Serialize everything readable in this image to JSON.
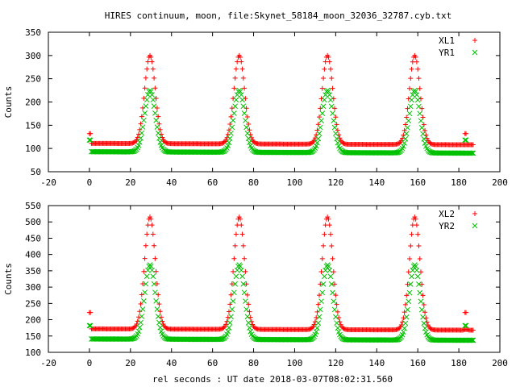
{
  "title": "HIRES continuum, moon, file:Skynet_58184_moon_32036_32787.cyb.txt",
  "xlabel": "rel seconds : UT date 2018-03-07T08:02:31.560",
  "chart_data": [
    {
      "type": "scatter",
      "ylabel": "Counts",
      "xlim": [
        -20,
        200
      ],
      "ylim": [
        50,
        350
      ],
      "xticks": [
        -20,
        0,
        20,
        40,
        60,
        80,
        100,
        120,
        140,
        160,
        180,
        200
      ],
      "yticks": [
        50,
        100,
        150,
        200,
        250,
        300,
        350
      ],
      "grid": false,
      "legend": "top-right",
      "peaks": [
        29.5,
        73,
        116,
        158.5
      ],
      "peak_width": 2.6,
      "x_range": [
        1,
        187
      ],
      "series": [
        {
          "name": "XL1",
          "marker": "+",
          "color": "#ff0000",
          "baseline_start": 111,
          "baseline_end": 108,
          "peak": 300,
          "cal_at_0": 132,
          "cal_at_183": 132,
          "end_value": 108
        },
        {
          "name": "YR1",
          "marker": "x",
          "color": "#00c000",
          "baseline_start": 93,
          "baseline_end": 90,
          "peak": 225,
          "cal_at_0": 118,
          "cal_at_183": 118,
          "end_value": 90
        }
      ]
    },
    {
      "type": "scatter",
      "ylabel": "Counts",
      "xlim": [
        -20,
        200
      ],
      "ylim": [
        100,
        550
      ],
      "xticks": [
        -20,
        0,
        20,
        40,
        60,
        80,
        100,
        120,
        140,
        160,
        180,
        200
      ],
      "yticks": [
        100,
        150,
        200,
        250,
        300,
        350,
        400,
        450,
        500,
        550
      ],
      "grid": false,
      "legend": "top-right",
      "peaks": [
        29.5,
        73,
        116,
        158.5
      ],
      "peak_width": 2.6,
      "x_range": [
        1,
        187
      ],
      "series": [
        {
          "name": "XL2",
          "marker": "+",
          "color": "#ff0000",
          "baseline_start": 172,
          "baseline_end": 168,
          "peak": 515,
          "cal_at_0": 222,
          "cal_at_183": 222,
          "end_value": 170
        },
        {
          "name": "YR2",
          "marker": "x",
          "color": "#00c000",
          "baseline_start": 141,
          "baseline_end": 137,
          "peak": 368,
          "cal_at_0": 182,
          "cal_at_183": 182,
          "end_value": 137
        }
      ]
    }
  ]
}
